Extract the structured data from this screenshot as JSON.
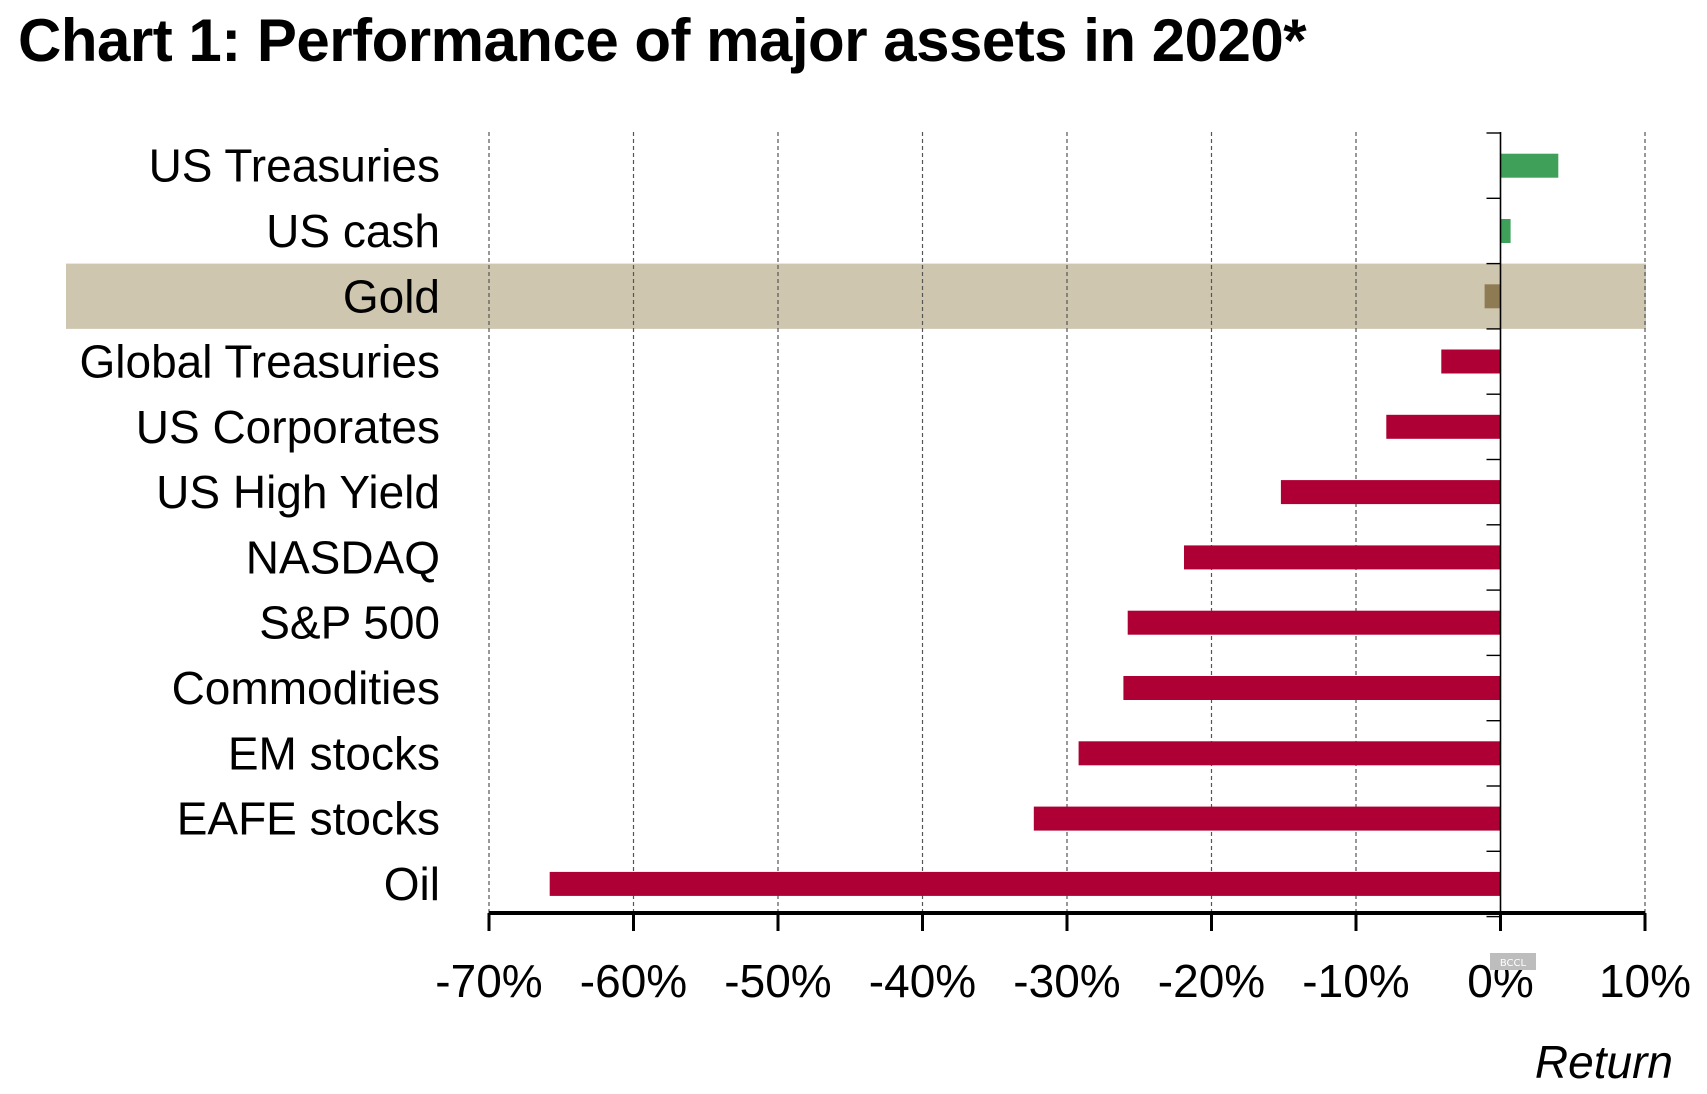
{
  "chart_data": {
    "type": "bar",
    "orientation": "horizontal",
    "title": "Chart 1: Performance of major assets in 2020*",
    "xlabel": "Return",
    "ylabel": "",
    "xlim": [
      -70,
      10
    ],
    "xticks": [
      -70,
      -60,
      -50,
      -40,
      -30,
      -20,
      -10,
      0,
      10
    ],
    "xtick_labels": [
      "-70%",
      "-60%",
      "-50%",
      "-40%",
      "-30%",
      "-20%",
      "-10%",
      "0%",
      "10%"
    ],
    "grid": "vertical dashed",
    "highlighted_category": "Gold",
    "categories": [
      "US Treasuries",
      "US cash",
      "Gold",
      "Global Treasuries",
      "US Corporates",
      "US High Yield",
      "NASDAQ",
      "S&P 500",
      "Commodities",
      "EM stocks",
      "EAFE stocks",
      "Oil"
    ],
    "values": [
      4.0,
      0.7,
      -1.1,
      -4.1,
      -7.9,
      -15.2,
      -21.9,
      -25.8,
      -26.1,
      -29.2,
      -32.3,
      -65.8
    ],
    "colors": {
      "positive": "#3fa159",
      "negative": "#ae0034",
      "highlight_bar": "#8e7b54",
      "highlight_band": "#cfc6b0",
      "highlight_label": "#5e5540"
    }
  },
  "watermark": "BCCL"
}
